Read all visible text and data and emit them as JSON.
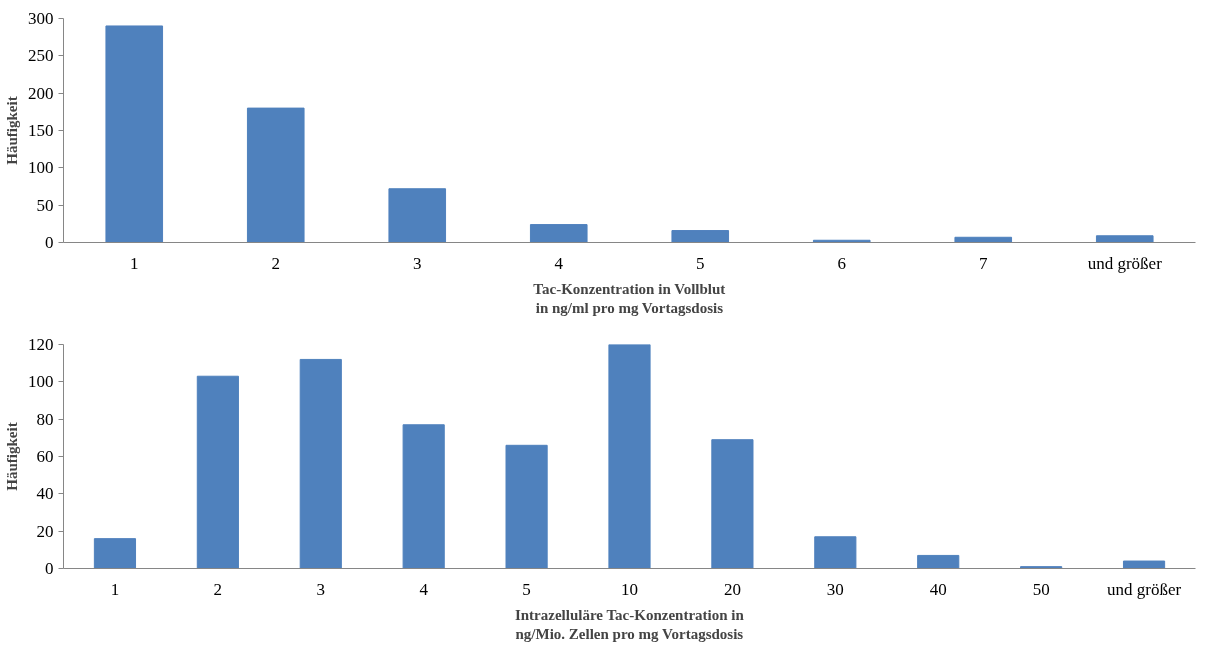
{
  "chart_data": [
    {
      "type": "bar",
      "xlabel": "Tac-Konzentration in Vollblut in ng/ml pro mg Vortagsdosis",
      "ylabel": "Häufigkeit",
      "categories": [
        "1",
        "2",
        "3",
        "4",
        "5",
        "6",
        "7",
        "und größer"
      ],
      "values": [
        290,
        180,
        72,
        24,
        16,
        3,
        7,
        9
      ],
      "color": "#4f81bd",
      "ylim": [
        0,
        300
      ],
      "yticks": [
        0,
        50,
        100,
        150,
        200,
        250,
        300
      ],
      "grid": false
    },
    {
      "type": "bar",
      "xlabel": "Intrazelluläre Tac-Konzentration in ng/Mio. Zellen pro mg Vortagsdosis",
      "ylabel": "Häufigkeit",
      "categories": [
        "1",
        "2",
        "3",
        "4",
        "5",
        "10",
        "20",
        "30",
        "40",
        "50",
        "und größer"
      ],
      "values": [
        16,
        103,
        112,
        77,
        66,
        120,
        69,
        17,
        7,
        1,
        4
      ],
      "color": "#4f81bd",
      "ylim": [
        0,
        120
      ],
      "yticks": [
        0,
        20,
        40,
        60,
        80,
        100,
        120
      ],
      "grid": false
    }
  ]
}
